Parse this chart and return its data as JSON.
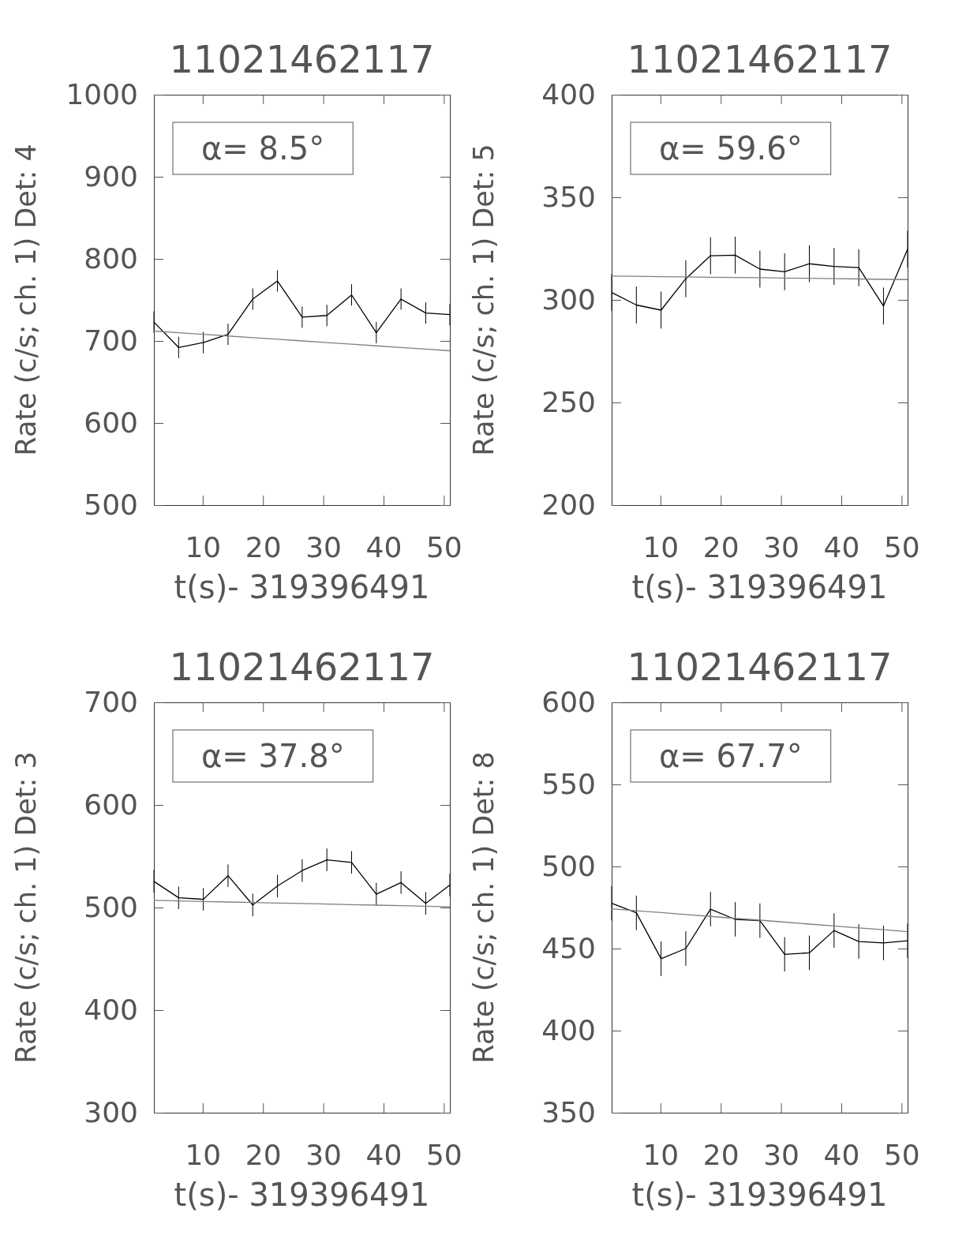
{
  "chart_data": [
    {
      "type": "line",
      "title": "11021462117",
      "xlabel": "t(s)- 319396491",
      "ylabel": "Rate (c/s; ch. 1) Det: 4",
      "annotations": [
        "α= 8.5°"
      ],
      "x": [
        1.9,
        6,
        10.1,
        14.2,
        18.3,
        22.4,
        26.5,
        30.6,
        34.7,
        38.8,
        42.9,
        47,
        51
      ],
      "xlim": [
        1.9,
        51
      ],
      "xticks": [
        10,
        20,
        30,
        40,
        50
      ],
      "ylim": [
        500,
        1000
      ],
      "yticks": [
        500,
        600,
        700,
        800,
        900,
        1000
      ],
      "marker": "none",
      "line_style": "solid",
      "grid": false,
      "series": [
        {
          "color": "#000000",
          "values": [
            723,
            692,
            698,
            708,
            751,
            773,
            729,
            731,
            756,
            710,
            751,
            734,
            732
          ],
          "errors": [
            13,
            13,
            13,
            13,
            13,
            13,
            13,
            13,
            13,
            13,
            13,
            13,
            13
          ]
        },
        {
          "color": "#808080",
          "values": [
            712,
            710,
            708,
            706,
            704,
            702,
            700,
            698,
            696,
            694,
            692,
            690,
            688
          ]
        }
      ]
    },
    {
      "type": "line",
      "title": "11021462117",
      "xlabel": "t(s)- 319396491",
      "ylabel": "Rate (c/s; ch. 1) Det: 5",
      "annotations": [
        "α= 59.6°"
      ],
      "x": [
        1.9,
        6,
        10.1,
        14.2,
        18.3,
        22.4,
        26.5,
        30.6,
        34.7,
        38.8,
        42.9,
        47,
        51
      ],
      "xlim": [
        1.9,
        51
      ],
      "xticks": [
        10,
        20,
        30,
        40,
        50
      ],
      "ylim": [
        200,
        400
      ],
      "yticks": [
        200,
        250,
        300,
        350,
        400
      ],
      "marker": "none",
      "line_style": "solid",
      "grid": false,
      "series": [
        {
          "color": "#000000",
          "values": [
            303.6,
            297.5,
            295,
            310.3,
            321.5,
            321.8,
            315,
            313.7,
            317.6,
            316.3,
            315.7,
            297,
            324.7
          ],
          "errors": [
            9,
            9,
            9,
            9,
            9,
            9,
            9,
            9,
            9,
            9,
            9,
            9,
            9
          ]
        },
        {
          "color": "#808080",
          "values": [
            311.6,
            311.5,
            311.3,
            311.2,
            311.0,
            310.9,
            310.8,
            310.6,
            310.5,
            310.3,
            310.2,
            310.0,
            309.9
          ]
        }
      ]
    },
    {
      "type": "line",
      "title": "11021462117",
      "xlabel": "t(s)- 319396491",
      "ylabel": "Rate (c/s; ch. 1) Det: 3",
      "annotations": [
        "α= 37.8°"
      ],
      "x": [
        1.9,
        6,
        10.1,
        14.2,
        18.3,
        22.4,
        26.5,
        30.6,
        34.7,
        38.8,
        42.9,
        47,
        51
      ],
      "xlim": [
        1.9,
        51
      ],
      "xticks": [
        10,
        20,
        30,
        40,
        50
      ],
      "ylim": [
        300,
        700
      ],
      "yticks": [
        300,
        400,
        500,
        600,
        700
      ],
      "marker": "none",
      "line_style": "solid",
      "grid": false,
      "series": [
        {
          "color": "#000000",
          "values": [
            525.5,
            509.5,
            508,
            531,
            502.5,
            521,
            536,
            546.5,
            544,
            513,
            524.3,
            504,
            522
          ],
          "errors": [
            11,
            11,
            11,
            11,
            11,
            11,
            11,
            11,
            11,
            11,
            11,
            11,
            11
          ]
        },
        {
          "color": "#808080",
          "values": [
            507,
            506.5,
            505.9,
            505.4,
            504.9,
            504.4,
            503.9,
            503.3,
            502.8,
            502.3,
            501.8,
            501.2,
            500.7
          ]
        }
      ]
    },
    {
      "type": "line",
      "title": "11021462117",
      "xlabel": "t(s)- 319396491",
      "ylabel": "Rate (c/s; ch. 1) Det: 8",
      "annotations": [
        "α= 67.7°"
      ],
      "x": [
        1.9,
        6,
        10.1,
        14.2,
        18.3,
        22.4,
        26.5,
        30.6,
        34.7,
        38.8,
        42.9,
        47,
        51
      ],
      "xlim": [
        1.9,
        51
      ],
      "xticks": [
        10,
        20,
        30,
        40,
        50
      ],
      "ylim": [
        350,
        600
      ],
      "yticks": [
        350,
        400,
        450,
        500,
        550,
        600
      ],
      "marker": "none",
      "line_style": "solid",
      "grid": false,
      "series": [
        {
          "color": "#000000",
          "values": [
            477.6,
            471.8,
            443.8,
            450,
            474,
            467.8,
            467,
            446.5,
            447.4,
            461,
            454.3,
            453.4,
            454.7
          ],
          "errors": [
            10.5,
            10.5,
            10.5,
            10.5,
            10.5,
            10.5,
            10.5,
            10.5,
            10.5,
            10.5,
            10.5,
            10.5,
            10.5
          ]
        },
        {
          "color": "#808080",
          "values": [
            474.2,
            473.0,
            471.9,
            470.7,
            469.6,
            468.4,
            467.3,
            466.1,
            464.9,
            463.8,
            462.6,
            461.5,
            460.3
          ]
        }
      ]
    }
  ]
}
